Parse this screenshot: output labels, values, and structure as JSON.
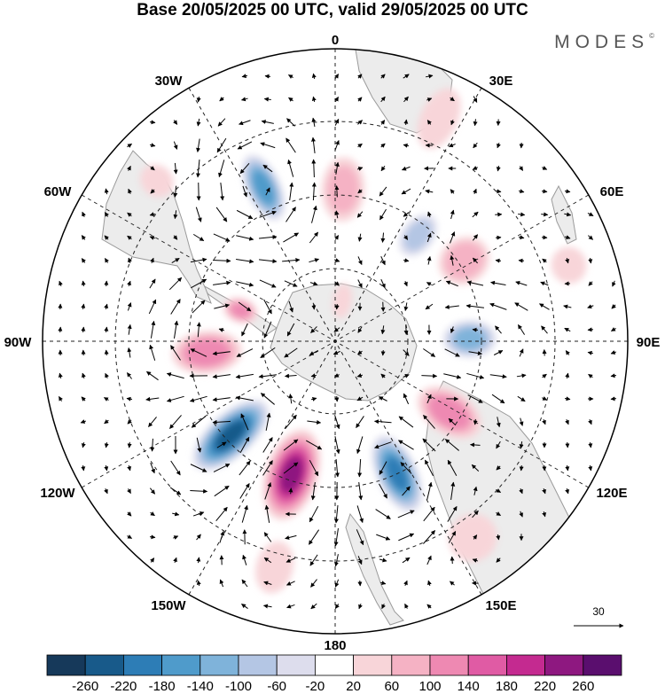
{
  "title": "Base 20/05/2025 00 UTC, valid 29/05/2025 00 UTC",
  "brand": "MODES",
  "brand_mark": "©",
  "longitude_labels": {
    "lon_0": "0",
    "lon_30e": "30E",
    "lon_60e": "60E",
    "lon_90e": "90E",
    "lon_120e": "120E",
    "lon_150e": "150E",
    "lon_180": "180",
    "lon_150w": "150W",
    "lon_120w": "120W",
    "lon_90w": "90W",
    "lon_60w": "60W",
    "lon_30w": "30W"
  },
  "reference_vector": {
    "value": "30"
  },
  "colorbar": {
    "ticks": [
      "-260",
      "-220",
      "-180",
      "-140",
      "-100",
      "-60",
      "-20",
      "20",
      "60",
      "100",
      "140",
      "180",
      "220",
      "260"
    ],
    "colors": [
      "#16395a",
      "#185a8a",
      "#2d7db6",
      "#4f9bcb",
      "#7fb3da",
      "#b4c6e4",
      "#dddded",
      "#ffffff",
      "#f8d5d9",
      "#f5b2c4",
      "#ee89b2",
      "#e05ba4",
      "#c42a90",
      "#8e1880",
      "#5a0e6e"
    ]
  },
  "anomalies": [
    {
      "lon": -25,
      "colat": 29,
      "value": -170,
      "rx": 0.12,
      "ry": 0.055
    },
    {
      "lon": 3,
      "colat": 26,
      "value": 90,
      "rx": 0.11,
      "ry": 0.07
    },
    {
      "lon": 38,
      "colat": 23,
      "value": -90,
      "rx": 0.08,
      "ry": 0.05
    },
    {
      "lon": 58,
      "colat": 26,
      "value": 110,
      "rx": 0.09,
      "ry": 0.075
    },
    {
      "lon": 89,
      "colat": 23,
      "value": -130,
      "rx": 0.09,
      "ry": 0.06
    },
    {
      "lon": 122,
      "colat": 23,
      "value": 150,
      "rx": 0.12,
      "ry": 0.07
    },
    {
      "lon": 155,
      "colat": 25,
      "value": -200,
      "rx": 0.14,
      "ry": 0.065
    },
    {
      "lon": -162,
      "colat": 24,
      "value": 240,
      "rx": 0.16,
      "ry": 0.085
    },
    {
      "lon": -132,
      "colat": 24,
      "value": -250,
      "rx": 0.16,
      "ry": 0.07
    },
    {
      "lon": -95,
      "colat": 22,
      "value": 150,
      "rx": 0.12,
      "ry": 0.07
    },
    {
      "lon": -72,
      "colat": 17,
      "value": 130,
      "rx": 0.06,
      "ry": 0.04
    },
    {
      "lon": 10,
      "colat": 7,
      "value": 60,
      "rx": 0.06,
      "ry": 0.03
    },
    {
      "lon": 25,
      "colat": 42,
      "value": 70,
      "rx": 0.11,
      "ry": 0.06
    },
    {
      "lon": -48,
      "colat": 41,
      "value": 60,
      "rx": 0.06,
      "ry": 0.05
    },
    {
      "lon": 72,
      "colat": 42,
      "value": 60,
      "rx": 0.06,
      "ry": 0.06
    },
    {
      "lon": 145,
      "colat": 41,
      "value": 70,
      "rx": 0.08,
      "ry": 0.08
    },
    {
      "lon": -165,
      "colat": 40,
      "value": 70,
      "rx": 0.09,
      "ry": 0.06
    }
  ]
}
